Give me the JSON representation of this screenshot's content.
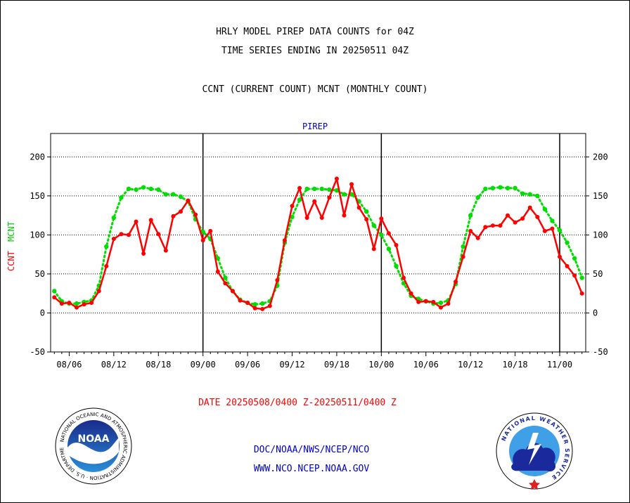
{
  "titles": {
    "line1": "HRLY MODEL PIREP DATA COUNTS for 04Z",
    "line2": "TIME SERIES ENDING IN 20250511 04Z",
    "line3": "CCNT (CURRENT COUNT) MCNT (MONTHLY COUNT)"
  },
  "footer": {
    "date_range": "DATE 20250508/0400 Z-20250511/0400 Z",
    "credit1": "DOC/NOAA/NWS/NCEP/NCO",
    "credit2": "WWW.NCO.NCEP.NOAA.GOV"
  },
  "logos": {
    "noaa_text": "NOAA",
    "noaa_ring": "NATIONAL OCEANIC AND ATMOSPHERIC ADMINISTRATION · U.S. DEPARTMENT OF COMMERCE",
    "nws_ring": "NATIONAL WEATHER SERVICE"
  },
  "colors": {
    "ccnt": "#ff0000",
    "mcnt": "#00dd00",
    "panel_label": "#0000cc"
  },
  "chart_data": {
    "type": "line",
    "panel_title": "PIREP",
    "ylabel_left": "CCNT",
    "ylabel_right": "MCNT",
    "ylim": [
      -50,
      230
    ],
    "yticks": [
      -50,
      0,
      50,
      100,
      150,
      200
    ],
    "grid_lines": [
      0,
      50,
      100,
      150,
      200
    ],
    "x_tick_labels": [
      "08/06",
      "08/12",
      "08/18",
      "09/00",
      "09/06",
      "09/12",
      "09/18",
      "10/00",
      "10/06",
      "10/12",
      "10/18",
      "11/00"
    ],
    "x_tick_hours": [
      -18,
      -12,
      -6,
      0,
      6,
      12,
      18,
      24,
      30,
      36,
      42,
      48
    ],
    "day_boundary_hours": [
      0,
      24,
      48
    ],
    "x_hour_range": [
      -20.5,
      51.5
    ],
    "series": [
      {
        "name": "CCNT",
        "x": [
          -20,
          -19,
          -18,
          -17,
          -16,
          -15,
          -14,
          -13,
          -12,
          -11,
          -10,
          -9,
          -8,
          -7,
          -6,
          -5,
          -4,
          -3,
          -2,
          -1,
          0,
          1,
          2,
          3,
          4,
          5,
          6,
          7,
          8,
          9,
          10,
          11,
          12,
          13,
          14,
          15,
          16,
          17,
          18,
          19,
          20,
          21,
          22,
          23,
          24,
          25,
          26,
          27,
          28,
          29,
          30,
          31,
          32,
          33,
          34,
          35,
          36,
          37,
          38,
          39,
          40,
          41,
          42,
          43,
          44,
          45,
          46,
          47,
          48,
          49,
          50,
          51
        ],
        "values": [
          20,
          12,
          13,
          7,
          11,
          13,
          28,
          60,
          95,
          101,
          100,
          117,
          76,
          119,
          101,
          80,
          124,
          130,
          144,
          126,
          93,
          105,
          53,
          38,
          28,
          16,
          13,
          6,
          5,
          9,
          42,
          93,
          137,
          160,
          122,
          143,
          122,
          148,
          172,
          125,
          165,
          135,
          120,
          82,
          121,
          102,
          87,
          45,
          25,
          14,
          15,
          14,
          7,
          12,
          40,
          72,
          105,
          96,
          110,
          112,
          112,
          125,
          116,
          121,
          135,
          123,
          105,
          108,
          72,
          60,
          48,
          25
        ]
      },
      {
        "name": "MCNT",
        "x": [
          -20,
          -19,
          -18,
          -17,
          -16,
          -15,
          -14,
          -13,
          -12,
          -11,
          -10,
          -9,
          -8,
          -7,
          -6,
          -5,
          -4,
          -3,
          -2,
          -1,
          0,
          1,
          2,
          3,
          4,
          5,
          6,
          7,
          8,
          9,
          10,
          11,
          12,
          13,
          14,
          15,
          16,
          17,
          18,
          19,
          20,
          21,
          22,
          23,
          24,
          25,
          26,
          27,
          28,
          29,
          30,
          31,
          32,
          33,
          34,
          35,
          36,
          37,
          38,
          39,
          40,
          41,
          42,
          43,
          44,
          45,
          46,
          47,
          48,
          49,
          50,
          51
        ],
        "values": [
          28,
          15,
          12,
          12,
          14,
          16,
          35,
          85,
          122,
          148,
          159,
          158,
          161,
          159,
          158,
          152,
          152,
          149,
          143,
          120,
          104,
          95,
          70,
          45,
          28,
          17,
          13,
          11,
          12,
          15,
          35,
          90,
          123,
          145,
          159,
          159,
          159,
          158,
          157,
          152,
          152,
          143,
          130,
          112,
          100,
          82,
          60,
          38,
          22,
          18,
          15,
          12,
          13,
          16,
          37,
          85,
          125,
          148,
          159,
          160,
          161,
          160,
          160,
          153,
          152,
          150,
          133,
          118,
          106,
          90,
          70,
          45
        ]
      }
    ]
  }
}
